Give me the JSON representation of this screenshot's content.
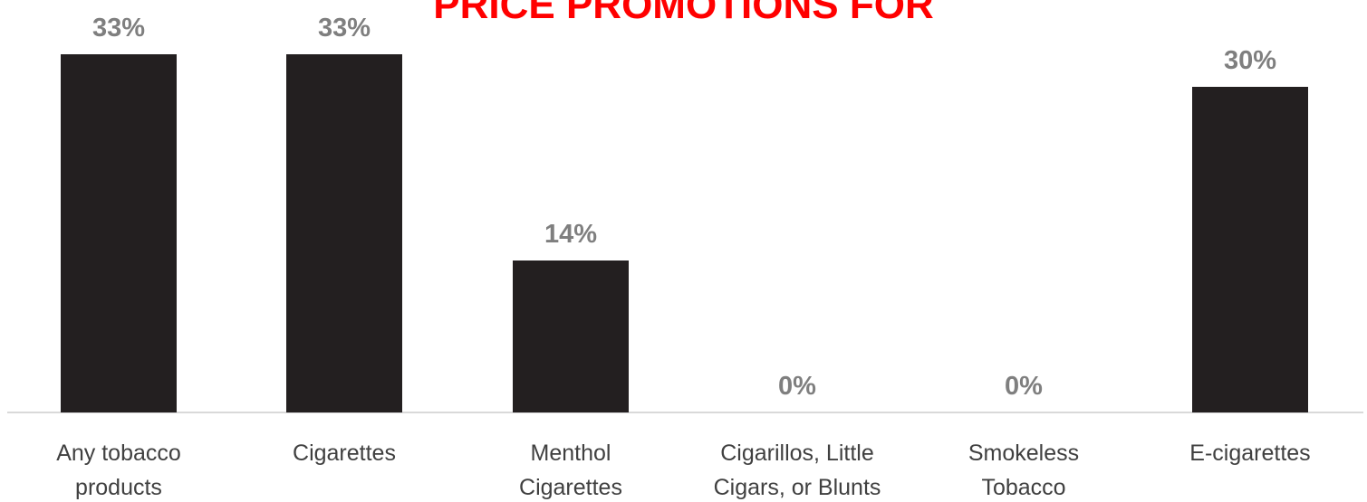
{
  "chart_data": {
    "type": "bar",
    "title": "PRICE PROMOTIONS FOR",
    "categories": [
      [
        "Any tobacco",
        "products"
      ],
      [
        "Cigarettes"
      ],
      [
        "Menthol",
        "Cigarettes"
      ],
      [
        "Cigarillos, Little",
        "Cigars, or Blunts"
      ],
      [
        "Smokeless",
        "Tobacco"
      ],
      [
        "E-cigarettes"
      ]
    ],
    "values": [
      33,
      33,
      14,
      0,
      0,
      30
    ],
    "value_labels": [
      "33%",
      "33%",
      "14%",
      "0%",
      "0%",
      "30%"
    ],
    "ylim": [
      0,
      35
    ],
    "grid": false,
    "legend": "none",
    "bar_color": "#231f20",
    "title_color": "#ff0000",
    "label_color": "#7f7f7f"
  }
}
